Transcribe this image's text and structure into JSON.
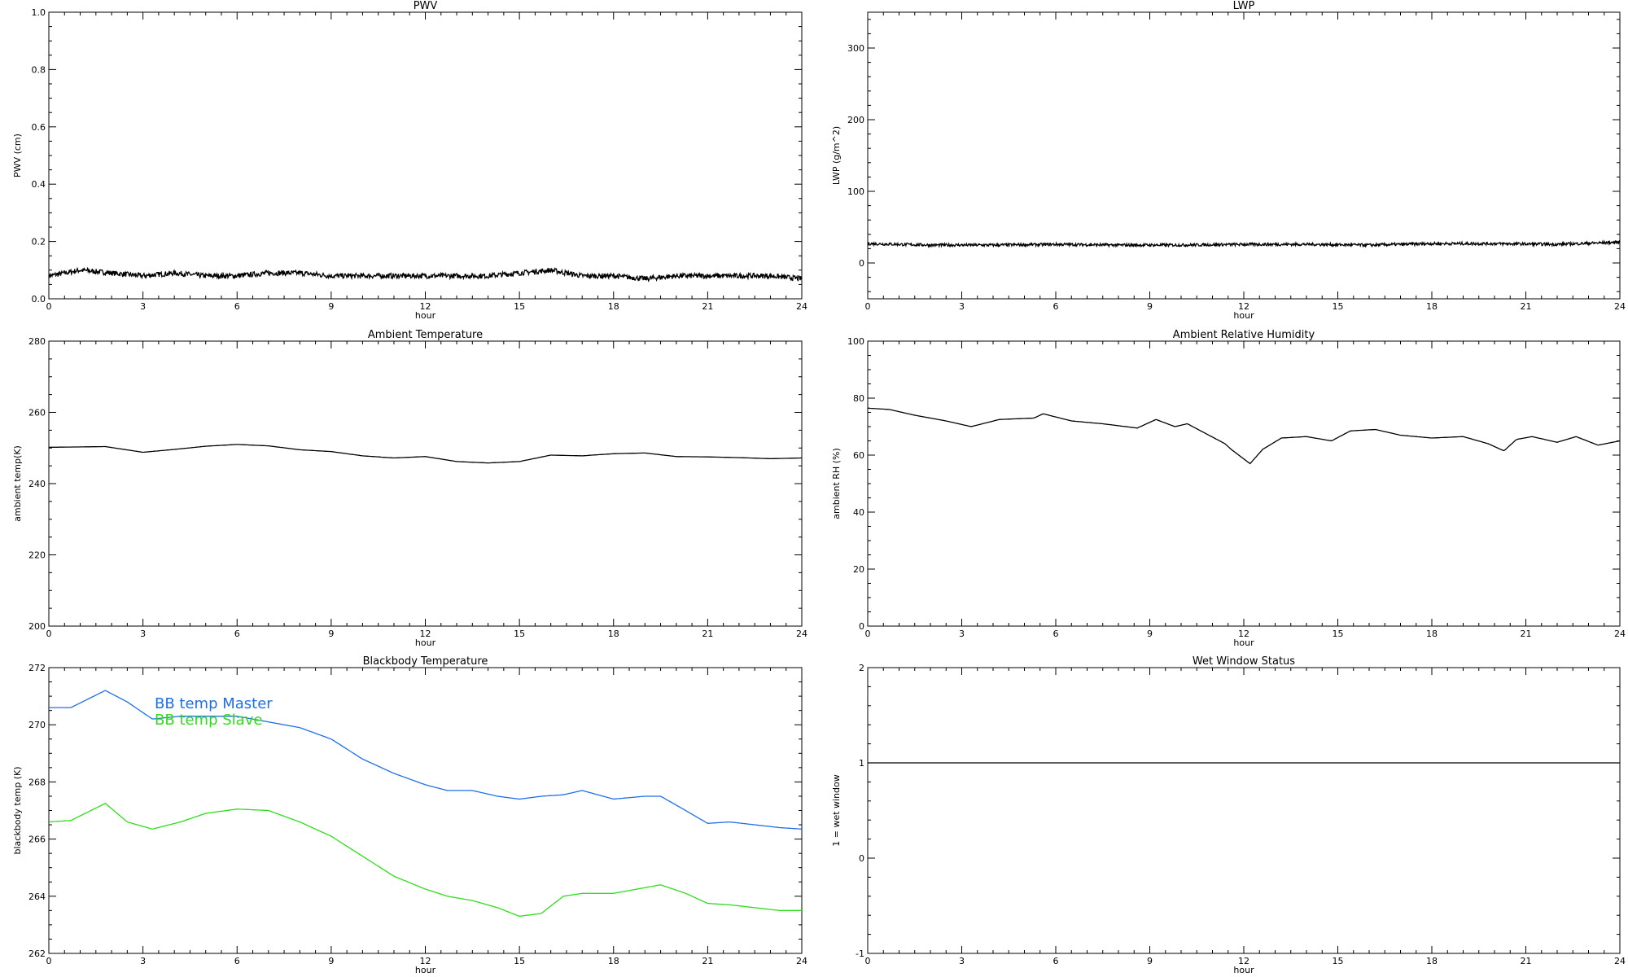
{
  "chart_data": [
    {
      "type": "line",
      "title": "PWV",
      "xlabel": "hour",
      "ylabel": "PWV (cm)",
      "xlim": [
        0,
        24
      ],
      "ylim": [
        0.0,
        1.0
      ],
      "xticks": [
        "0",
        "3",
        "6",
        "9",
        "12",
        "15",
        "18",
        "21",
        "24"
      ],
      "yticks": [
        "0.0",
        "0.2",
        "0.4",
        "0.6",
        "0.8",
        "1.0"
      ],
      "noisy": true,
      "series": [
        {
          "color": "#000000",
          "x": [
            0,
            1,
            2,
            3,
            4,
            5,
            6,
            7,
            8,
            9,
            10,
            11,
            12,
            13,
            14,
            15,
            16,
            17,
            18,
            19,
            20,
            21,
            22,
            23,
            24
          ],
          "y": [
            0.08,
            0.1,
            0.09,
            0.08,
            0.09,
            0.08,
            0.08,
            0.09,
            0.09,
            0.08,
            0.08,
            0.08,
            0.08,
            0.08,
            0.08,
            0.09,
            0.1,
            0.08,
            0.08,
            0.07,
            0.08,
            0.08,
            0.08,
            0.08,
            0.07
          ]
        }
      ]
    },
    {
      "type": "line",
      "title": "LWP",
      "xlabel": "hour",
      "ylabel": "LWP (g/m^2)",
      "xlim": [
        0,
        24
      ],
      "ylim": [
        -50,
        350
      ],
      "xticks": [
        "0",
        "3",
        "6",
        "9",
        "12",
        "15",
        "18",
        "21",
        "24"
      ],
      "yticks": [
        "0",
        "100",
        "200",
        "300"
      ],
      "noisy": true,
      "series": [
        {
          "color": "#000000",
          "x": [
            0,
            2,
            4,
            6,
            8,
            10,
            12,
            14,
            16,
            18,
            20,
            22,
            24
          ],
          "y": [
            27,
            25,
            25,
            26,
            25,
            25,
            26,
            26,
            25,
            27,
            27,
            26,
            29
          ]
        }
      ]
    },
    {
      "type": "line",
      "title": "Ambient Temperature",
      "xlabel": "hour",
      "ylabel": "ambient temp(K)",
      "xlim": [
        0,
        24
      ],
      "ylim": [
        200,
        280
      ],
      "xticks": [
        "0",
        "3",
        "6",
        "9",
        "12",
        "15",
        "18",
        "21",
        "24"
      ],
      "yticks": [
        "200",
        "220",
        "240",
        "260",
        "280"
      ],
      "series": [
        {
          "color": "#000000",
          "x": [
            0,
            1,
            1.8,
            3,
            4,
            5,
            6,
            7,
            8,
            9,
            10,
            11,
            12,
            13,
            14,
            15,
            16,
            17,
            18,
            19,
            20,
            21,
            22,
            23,
            24
          ],
          "y": [
            250.2,
            250.3,
            250.4,
            248.8,
            249.6,
            250.5,
            251.0,
            250.6,
            249.5,
            249.0,
            247.8,
            247.2,
            247.6,
            246.2,
            245.8,
            246.2,
            248.0,
            247.8,
            248.4,
            248.6,
            247.6,
            247.5,
            247.3,
            247.0,
            247.2
          ]
        }
      ]
    },
    {
      "type": "line",
      "title": "Ambient Relative Humidity",
      "xlabel": "hour",
      "ylabel": "ambient RH (%)",
      "xlim": [
        0,
        24
      ],
      "ylim": [
        0,
        100
      ],
      "xticks": [
        "0",
        "3",
        "6",
        "9",
        "12",
        "15",
        "18",
        "21",
        "24"
      ],
      "yticks": [
        "0",
        "20",
        "40",
        "60",
        "80",
        "100"
      ],
      "series": [
        {
          "color": "#000000",
          "x": [
            0,
            0.7,
            1.5,
            2.5,
            3.3,
            4.2,
            5.3,
            5.6,
            6.5,
            7.5,
            8.6,
            9.2,
            9.8,
            10.2,
            10.8,
            11.4,
            11.6,
            12.2,
            12.6,
            13.2,
            14.0,
            14.8,
            15.4,
            16.2,
            17.0,
            18.0,
            19.0,
            19.8,
            20.3,
            20.7,
            21.2,
            22.0,
            22.6,
            23.3,
            24.0
          ],
          "y": [
            76.5,
            76.0,
            74.0,
            72.0,
            70.0,
            72.5,
            73.0,
            74.5,
            72.0,
            71.0,
            69.5,
            72.5,
            70.0,
            71.0,
            67.5,
            64.0,
            62.0,
            57.0,
            62.0,
            66.0,
            66.5,
            65.0,
            68.5,
            69.0,
            67.0,
            66.0,
            66.5,
            64.0,
            61.5,
            65.5,
            66.5,
            64.5,
            66.5,
            63.5,
            65.0
          ]
        }
      ]
    },
    {
      "type": "line",
      "title": "Blackbody Temperature",
      "xlabel": "hour",
      "ylabel": "blackbody temp (K)",
      "xlim": [
        0,
        24
      ],
      "ylim": [
        262,
        272
      ],
      "xticks": [
        "0",
        "3",
        "6",
        "9",
        "12",
        "15",
        "18",
        "21",
        "24"
      ],
      "yticks": [
        "262",
        "264",
        "266",
        "268",
        "270",
        "272"
      ],
      "legend": "top-left",
      "series": [
        {
          "name": "BB temp Master",
          "color": "#1e6fe8",
          "x": [
            0,
            0.7,
            1.8,
            2.5,
            3.3,
            4.2,
            5.0,
            6.0,
            7.0,
            8.0,
            9.0,
            10.0,
            11.0,
            12.0,
            12.7,
            13.5,
            14.3,
            15.0,
            15.7,
            16.4,
            17.0,
            18.0,
            19.0,
            19.5,
            20.3,
            21.0,
            21.7,
            22.5,
            23.3,
            24.0
          ],
          "y": [
            270.6,
            270.6,
            271.2,
            270.8,
            270.2,
            270.3,
            270.3,
            270.3,
            270.1,
            269.9,
            269.5,
            268.8,
            268.3,
            267.9,
            267.7,
            267.7,
            267.5,
            267.4,
            267.5,
            267.55,
            267.7,
            267.4,
            267.5,
            267.5,
            267.0,
            266.55,
            266.6,
            266.5,
            266.4,
            266.35
          ]
        },
        {
          "name": "BB temp Slave",
          "color": "#2edc1a",
          "x": [
            0,
            0.7,
            1.8,
            2.5,
            3.3,
            4.2,
            5.0,
            6.0,
            7.0,
            8.0,
            9.0,
            10.0,
            11.0,
            12.0,
            12.7,
            13.5,
            14.3,
            15.0,
            15.7,
            16.4,
            17.0,
            18.0,
            19.0,
            19.5,
            20.3,
            21.0,
            21.7,
            22.5,
            23.3,
            24.0
          ],
          "y": [
            266.6,
            266.65,
            267.25,
            266.6,
            266.35,
            266.6,
            266.9,
            267.05,
            267.0,
            266.6,
            266.1,
            265.4,
            264.7,
            264.25,
            264.0,
            263.85,
            263.6,
            263.3,
            263.4,
            264.0,
            264.1,
            264.1,
            264.3,
            264.4,
            264.1,
            263.75,
            263.7,
            263.6,
            263.5,
            263.5
          ]
        }
      ]
    },
    {
      "type": "line",
      "title": "Wet Window Status",
      "xlabel": "hour",
      "ylabel": "1 = wet window",
      "xlim": [
        0,
        24
      ],
      "ylim": [
        -1,
        2
      ],
      "xticks": [
        "0",
        "3",
        "6",
        "9",
        "12",
        "15",
        "18",
        "21",
        "24"
      ],
      "yticks": [
        "-1",
        "0",
        "1",
        "2"
      ],
      "series": [
        {
          "color": "#000000",
          "x": [
            0,
            24
          ],
          "y": [
            1,
            1
          ]
        }
      ]
    }
  ]
}
